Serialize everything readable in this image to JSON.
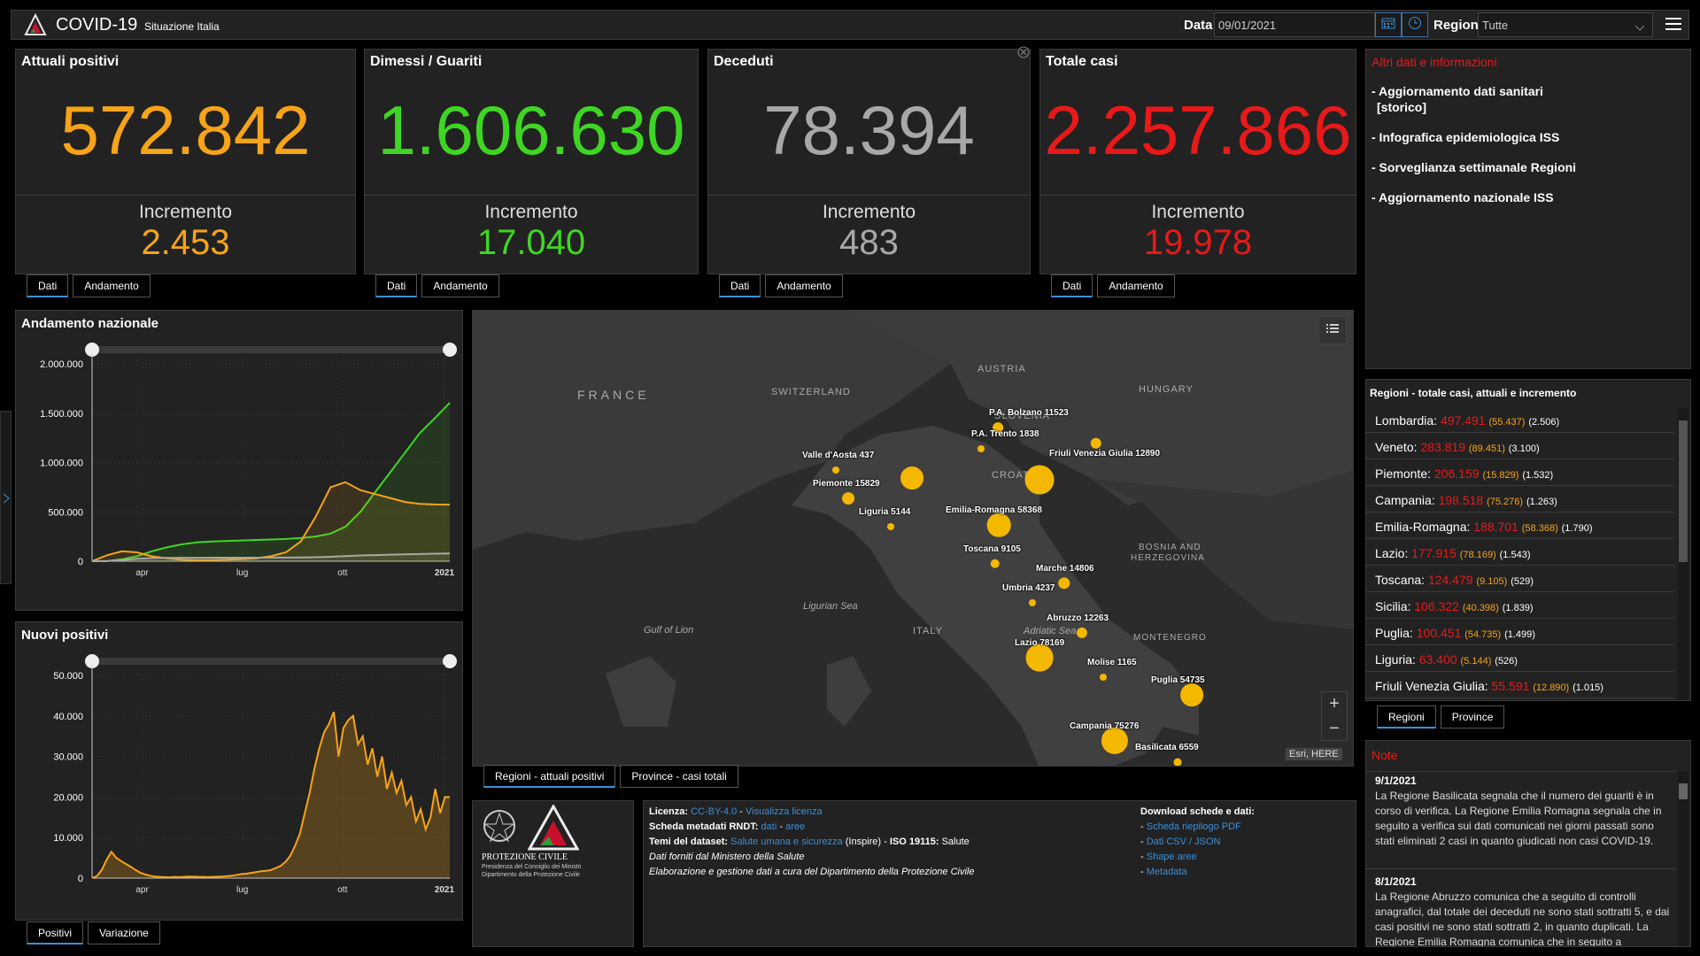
{
  "header": {
    "title": "COVID-19",
    "subtitle": "Situazione Italia",
    "date_label": "Data",
    "date_value": "09/01/2021",
    "region_label": "Regione",
    "region_value": "Tutte"
  },
  "stats": [
    {
      "title": "Attuali positivi",
      "value": "572.842",
      "inc_label": "Incremento",
      "inc": "2.453",
      "color": "#f7a418",
      "tabs": [
        "Dati",
        "Andamento"
      ]
    },
    {
      "title": "Dimessi / Guariti",
      "value": "1.606.630",
      "inc_label": "Incremento",
      "inc": "17.040",
      "color": "#3fd623",
      "tabs": [
        "Dati",
        "Andamento"
      ]
    },
    {
      "title": "Deceduti",
      "value": "78.394",
      "inc_label": "Incremento",
      "inc": "483",
      "color": "#a8a8a8",
      "tabs": [
        "Dati",
        "Andamento"
      ]
    },
    {
      "title": "Totale casi",
      "value": "2.257.866",
      "inc_label": "Incremento",
      "inc": "19.978",
      "color": "#e81919",
      "tabs": [
        "Dati",
        "Andamento"
      ]
    }
  ],
  "info": {
    "title": "Altri dati e informazioni",
    "links": [
      "- Aggiornamento dati sanitari",
      "[storico]",
      "- Infografica epidemiologica ISS",
      "- Sorveglianza settimanale Regioni",
      "- Aggiornamento nazionale ISS"
    ]
  },
  "chart_data": [
    {
      "type": "line",
      "title": "Andamento nazionale",
      "ylim": [
        0,
        2000000
      ],
      "yticks": [
        "2.000.000",
        "1.500.000",
        "1.000.000",
        "500.000",
        "0"
      ],
      "xticks": [
        "apr",
        "lug",
        "ott",
        "2021"
      ],
      "series": [
        {
          "color": "#3fd623",
          "values": [
            0,
            0,
            20000,
            50000,
            100000,
            140000,
            170000,
            190000,
            200000,
            205000,
            210000,
            215000,
            220000,
            225000,
            235000,
            250000,
            280000,
            350000,
            500000,
            700000,
            900000,
            1100000,
            1300000,
            1450000,
            1606630
          ]
        },
        {
          "color": "#f7a418",
          "values": [
            0,
            60000,
            100000,
            90000,
            50000,
            30000,
            15000,
            12000,
            13000,
            16000,
            20000,
            30000,
            50000,
            90000,
            200000,
            450000,
            750000,
            800000,
            720000,
            680000,
            640000,
            600000,
            580000,
            575000,
            572842
          ]
        },
        {
          "color": "#a8a8a8",
          "values": [
            0,
            3000,
            12000,
            25000,
            31000,
            34000,
            35000,
            35200,
            35500,
            35800,
            36000,
            36200,
            36500,
            37000,
            38000,
            40000,
            45000,
            52000,
            58000,
            62000,
            66000,
            70000,
            73000,
            76000,
            78394
          ]
        }
      ]
    },
    {
      "type": "area",
      "title": "Nuovi positivi",
      "ylim": [
        0,
        50000
      ],
      "yticks": [
        "50.000",
        "40.000",
        "30.000",
        "20.000",
        "10.000",
        "0"
      ],
      "xticks": [
        "apr",
        "lug",
        "ott",
        "2021"
      ],
      "series": [
        {
          "color": "#f7a418",
          "values": [
            0,
            500,
            2000,
            4500,
            6500,
            5000,
            4200,
            3500,
            2800,
            2000,
            1300,
            900,
            600,
            400,
            300,
            250,
            200,
            300,
            250,
            300,
            400,
            350,
            300,
            300,
            250,
            300,
            350,
            400,
            500,
            600,
            800,
            1000,
            1100,
            1300,
            1500,
            1700,
            1800,
            2000,
            2500,
            3000,
            4000,
            5500,
            8000,
            11000,
            16000,
            21000,
            27000,
            32000,
            36000,
            38000,
            41000,
            30000,
            37000,
            39000,
            40000,
            33000,
            35000,
            28000,
            32000,
            25000,
            30000,
            22000,
            26000,
            21000,
            24000,
            18000,
            20000,
            14000,
            17000,
            12000,
            15000,
            22000,
            16000,
            20000,
            19978
          ]
        }
      ]
    }
  ],
  "chart_tabs": [
    "Positivi",
    "Variazione"
  ],
  "map": {
    "countries": [
      "FRANCE",
      "SWITZERLAND",
      "AUSTRIA",
      "HUNGARY",
      "SLOVENIA",
      "CROATIA",
      "BOSNIA AND",
      "HERZEGOVINA",
      "MONTENEGRO",
      "ITALY"
    ],
    "seas": [
      "Ligurian Sea",
      "Gulf of Lion",
      "Adriatic Sea"
    ],
    "attribution": "Esri, HERE",
    "tabs": [
      "Regioni - attuali positivi",
      "Province - casi totali"
    ],
    "bubbles": [
      {
        "label": "P.A. Bolzano 11523",
        "value": 11523
      },
      {
        "label": "P.A. Trento 1838",
        "value": 1838
      },
      {
        "label": "Valle d'Aosta 437",
        "value": 437
      },
      {
        "label": "",
        "value": 55437
      },
      {
        "label": "",
        "value": 89451
      },
      {
        "label": "Friuli Venezia Giulia 12890",
        "value": 12890
      },
      {
        "label": "Piemonte 15829",
        "value": 15829
      },
      {
        "label": "Emilia-Romagna 58368",
        "value": 58368
      },
      {
        "label": "Liguria 5144",
        "value": 5144
      },
      {
        "label": "Toscana 9105",
        "value": 9105
      },
      {
        "label": "Marche 14806",
        "value": 14806
      },
      {
        "label": "Umbria 4237",
        "value": 4237
      },
      {
        "label": "Abruzzo 12263",
        "value": 12263
      },
      {
        "label": "Lazio 78169",
        "value": 78169
      },
      {
        "label": "Molise 1165",
        "value": 1165
      },
      {
        "label": "Puglia 54735",
        "value": 54735
      },
      {
        "label": "Campania 75276",
        "value": 75276
      },
      {
        "label": "Basilicata 6559",
        "value": 6559
      }
    ]
  },
  "regions": {
    "title": "Regioni - totale casi, attuali e incremento",
    "rows": [
      {
        "name": "Lombardia:",
        "total": "497.491",
        "active": "(55.437)",
        "inc": "(2.506)"
      },
      {
        "name": "Veneto:",
        "total": "283.819",
        "active": "(89.451)",
        "inc": "(3.100)"
      },
      {
        "name": "Piemonte:",
        "total": "206.159",
        "active": "(15.829)",
        "inc": "(1.532)"
      },
      {
        "name": "Campania:",
        "total": "198.518",
        "active": "(75.276)",
        "inc": "(1.263)"
      },
      {
        "name": "Emilia-Romagna:",
        "total": "188.701",
        "active": "(58.368)",
        "inc": "(1.790)"
      },
      {
        "name": "Lazio:",
        "total": "177.915",
        "active": "(78.169)",
        "inc": "(1.543)"
      },
      {
        "name": "Toscana:",
        "total": "124.479",
        "active": "(9.105)",
        "inc": "(529)"
      },
      {
        "name": "Sicilia:",
        "total": "106.322",
        "active": "(40.398)",
        "inc": "(1.839)"
      },
      {
        "name": "Puglia:",
        "total": "100.451",
        "active": "(54.735)",
        "inc": "(1.499)"
      },
      {
        "name": "Liguria:",
        "total": "63.400",
        "active": "(5.144)",
        "inc": "(526)"
      },
      {
        "name": "Friuli Venezia Giulia:",
        "total": "55.591",
        "active": "(12.890)",
        "inc": "(1.015)"
      }
    ],
    "tabs": [
      "Regioni",
      "Province"
    ]
  },
  "footer": {
    "gov_name": "PROTEZIONE CIVILE",
    "gov_sub1": "Presidenza del Consiglio dei Ministri",
    "gov_sub2": "Dipartimento della Protezione Civile",
    "licenza_label": "Licenza:",
    "licenza_link1": "CC-BY-4.0",
    "licenza_sep": " - ",
    "licenza_link2": "Visualizza licenza",
    "scheda_label": "Scheda metadati RNDT:",
    "scheda_link1": "dati",
    "scheda_sep": " - ",
    "scheda_link2": "aree",
    "temi_label": "Temi del dataset:",
    "temi_link": "Salute umana e sicurezza",
    "temi_rest": " (Inspire) - ",
    "temi_iso": "ISO 19115:",
    "temi_iso_val": " Salute",
    "line4": "Dati forniti dal Ministero della Salute",
    "line5": "Elaborazione e gestione dati a cura del Dipartimento della Protezione Civile",
    "download_title": "Download schede e dati:",
    "downloads": [
      "Scheda riepilogo PDF",
      "Dati CSV / JSON",
      "Shape aree",
      "Metadata"
    ]
  },
  "notes": {
    "title": "Note",
    "items": [
      {
        "date": "9/1/2021",
        "text": "La Regione Basilicata segnala che il numero dei guariti è in corso di verifica. La Regione Emilia Romagna segnala che in seguito a verifica sui dati comunicati nei giorni passati sono stati eliminati 2 casi in quanto giudicati non casi COVID-19."
      },
      {
        "date": "8/1/2021",
        "text": "La Regione Abruzzo comunica che a seguito di controlli anagrafici, dal totale dei deceduti ne sono stati sottratti 5, e dai casi positivi ne sono stati sottratti 2, in quanto duplicati. La Regione Emilia Romagna comunica che in seguito a"
      }
    ]
  }
}
